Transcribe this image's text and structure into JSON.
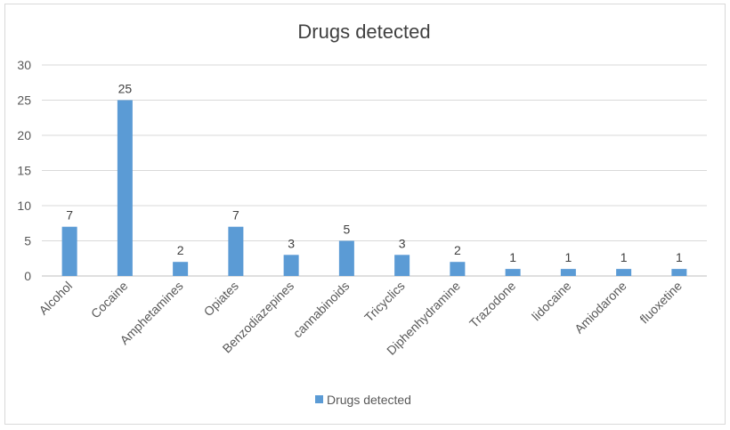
{
  "chart_data": {
    "type": "bar",
    "title": "Drugs detected",
    "xlabel": "",
    "ylabel": "",
    "categories": [
      "Alcohol",
      "Cocaine",
      "Amphetamines",
      "Opiates",
      "Benzodiazepines",
      "cannabinoids",
      "Tricyclics",
      "Diphenhydramine",
      "Trazodone",
      "lidocaine",
      "Amiodarone",
      "fluoxetine"
    ],
    "series": [
      {
        "name": "Drugs detected",
        "values": [
          7,
          25,
          2,
          7,
          3,
          5,
          3,
          2,
          1,
          1,
          1,
          1
        ]
      }
    ],
    "ylim": [
      0,
      30
    ],
    "yticks": [
      0,
      5,
      10,
      15,
      20,
      25,
      30
    ],
    "grid": true,
    "legend": "bottom",
    "data_labels": true,
    "colors": {
      "bar": "#5b9bd5",
      "grid": "#d9d9d9",
      "axis": "#bfbfbf"
    }
  }
}
